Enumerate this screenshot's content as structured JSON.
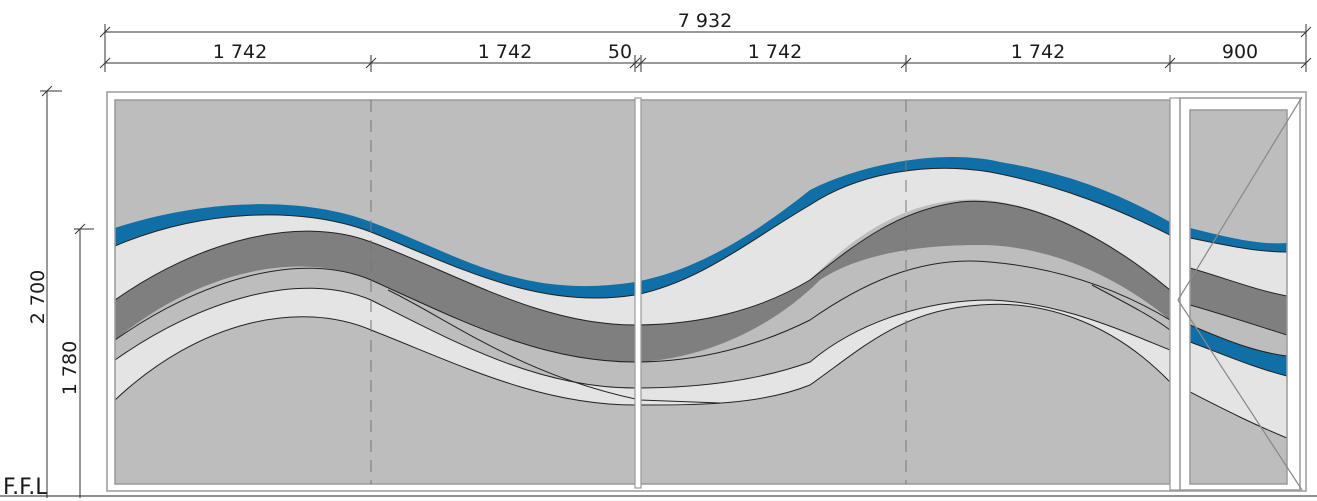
{
  "drawing": {
    "overall_width_label": "7 932",
    "segment_labels": [
      "1 742",
      "1 742",
      "50",
      "1 742",
      "1 742",
      "900"
    ],
    "height_label": "2 700",
    "sub_height_label": "1 780",
    "floor_label": "F.F.L",
    "colors": {
      "blue": "#0f6fa6",
      "dark_grey": "#7f7f7f",
      "mid_grey": "#bdbdbd",
      "light_grey": "#e4e4e4",
      "frame": "#9a9a9a"
    }
  }
}
